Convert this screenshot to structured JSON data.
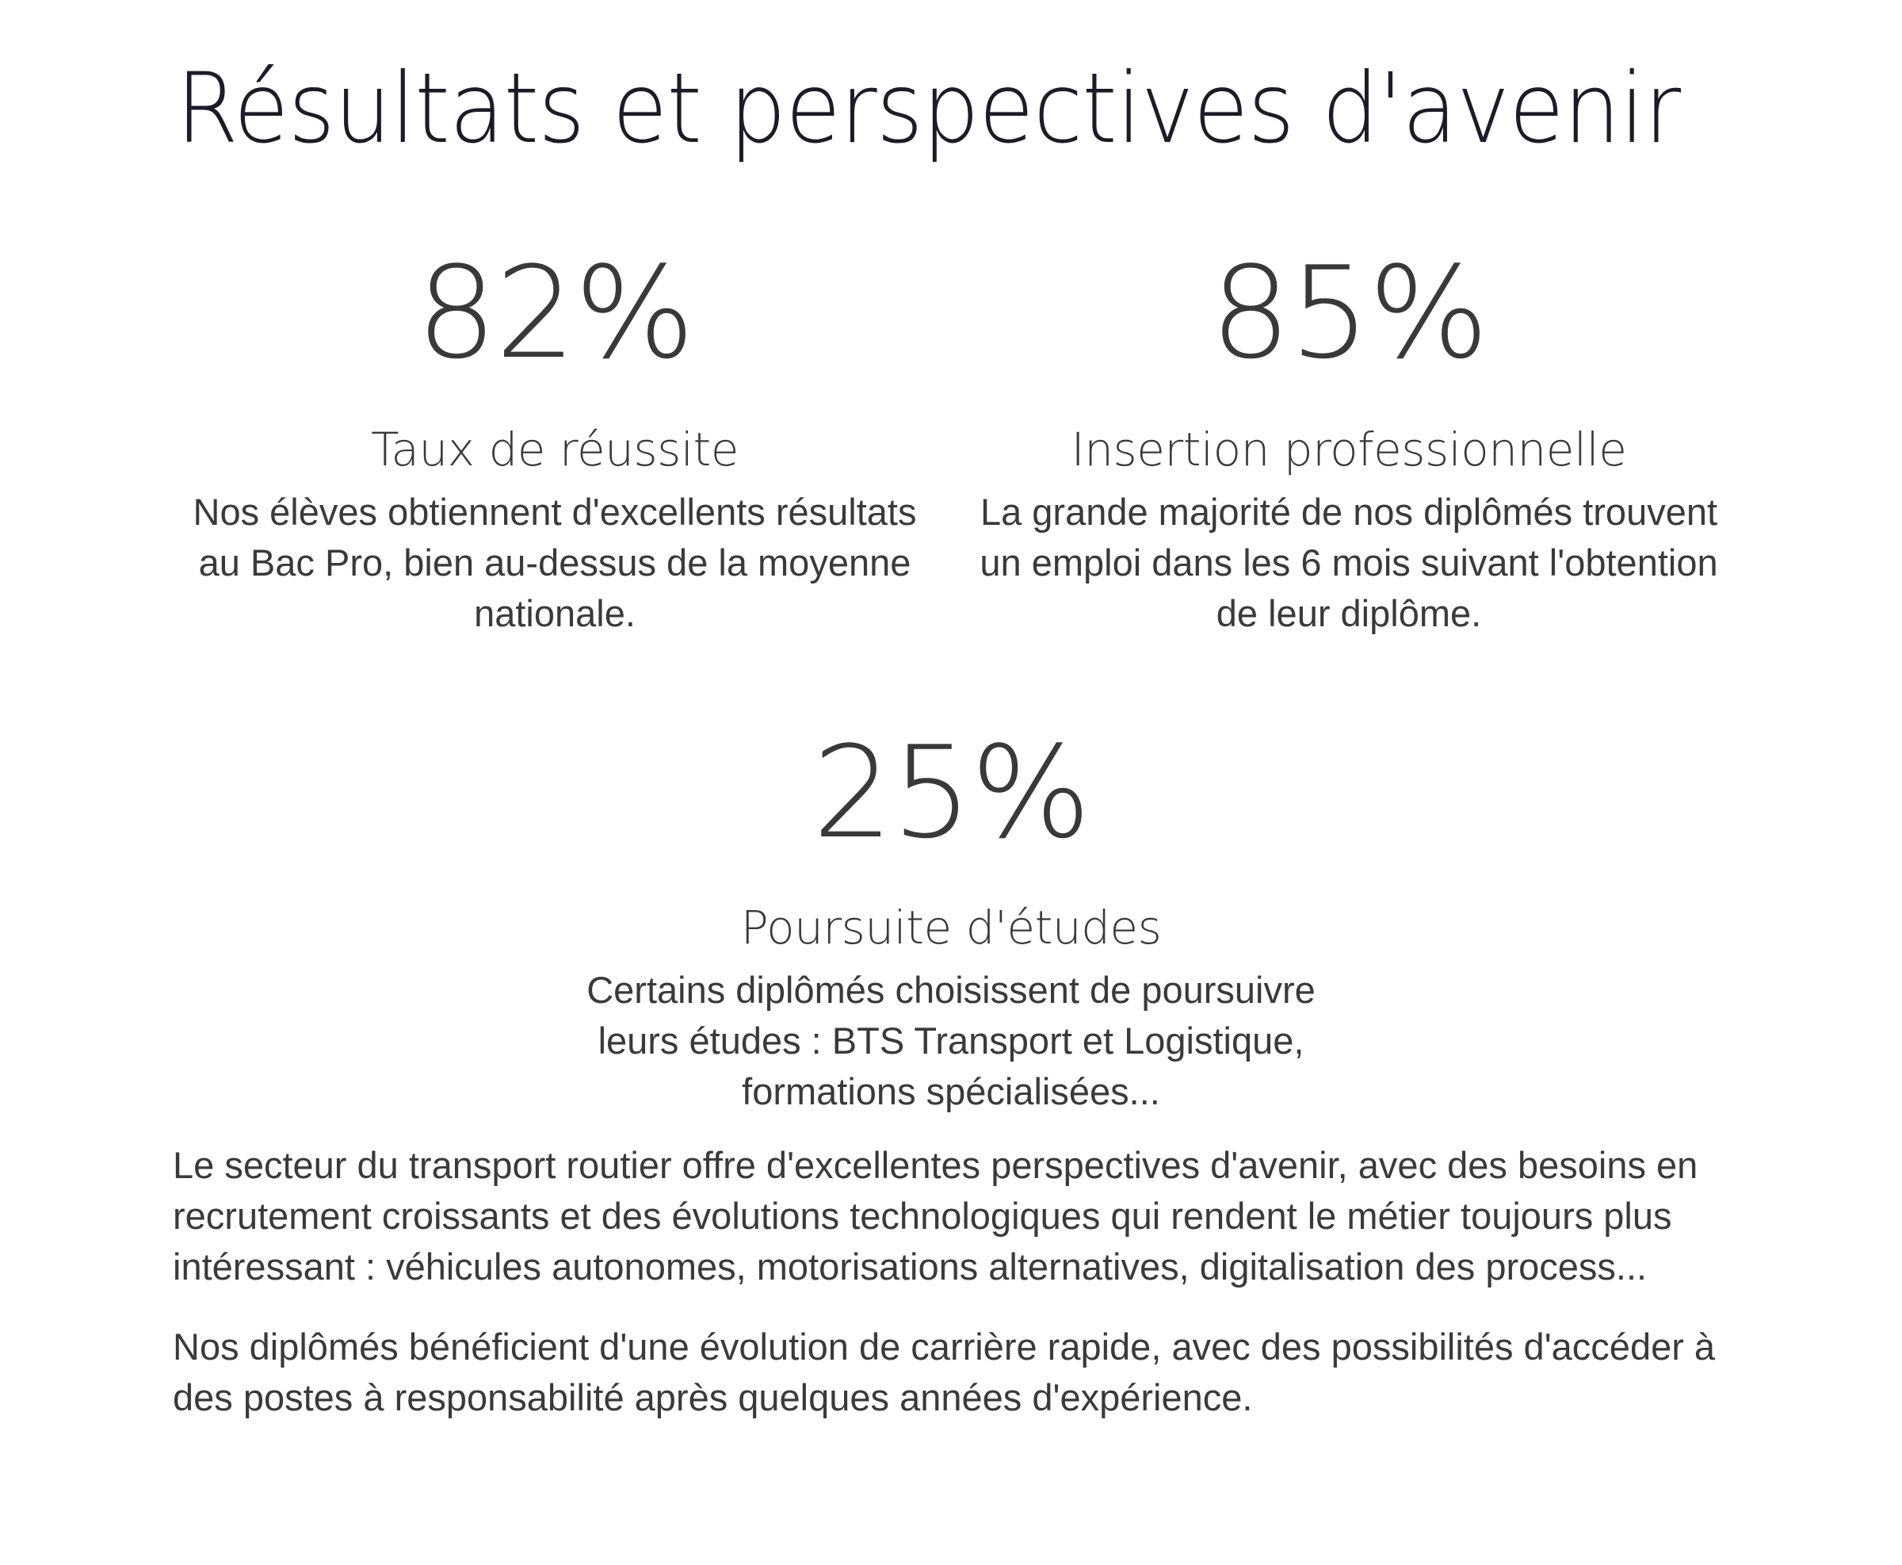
{
  "page": {
    "title": "Résultats et perspectives d'avenir"
  },
  "stats": [
    {
      "value": "82%",
      "label": "Taux de réussite",
      "description": "Nos élèves obtiennent d'excellents résultats au Bac Pro, bien au-dessus de la moyenne nationale."
    },
    {
      "value": "85%",
      "label": "Insertion professionnelle",
      "description": "La grande majorité de nos diplômés trouvent un emploi dans les 6 mois suivant l'obtention de leur diplôme."
    },
    {
      "value": "25%",
      "label": "Poursuite d'études",
      "description": "Certains diplômés choisissent de poursuivre leurs études : BTS Transport et Logistique, formations spécialisées..."
    }
  ],
  "body": {
    "paragraphs": [
      "Le secteur du transport routier offre d'excellentes perspectives d'avenir, avec des besoins en recrutement croissants et des évolutions technologiques qui rendent le métier toujours plus intéressant : véhicules autonomes, motorisations alternatives, digitalisation des process...",
      "Nos diplômés bénéficient d'une évolution de carrière rapide, avec des possibilités d'accéder à des postes à responsabilité après quelques années d'expérience."
    ]
  },
  "colors": {
    "title": "#1c1c28",
    "stat_text": "#3a3938",
    "body_text": "#3a3a3a",
    "background": "#ffffff"
  }
}
